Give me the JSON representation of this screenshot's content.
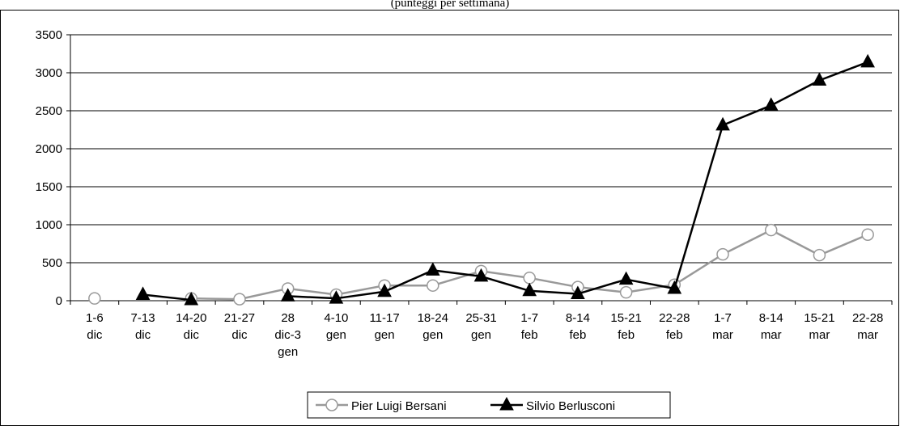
{
  "chart_data": {
    "type": "line",
    "title": "",
    "subtitle": "(punteggi per settimana)",
    "xlabel": "",
    "ylabel": "",
    "ylim": [
      0,
      3500
    ],
    "yticks": [
      "0",
      "500",
      "1000",
      "1500",
      "2000",
      "2500",
      "3000",
      "3500"
    ],
    "grid": "horizontal",
    "legend_position": "bottom",
    "categories": [
      [
        "1-6",
        "dic"
      ],
      [
        "7-13",
        "dic"
      ],
      [
        "14-20",
        "dic"
      ],
      [
        "21-27",
        "dic"
      ],
      [
        "28",
        "dic-3",
        "gen"
      ],
      [
        "4-10",
        "gen"
      ],
      [
        "11-17",
        "gen"
      ],
      [
        "18-24",
        "gen"
      ],
      [
        "25-31",
        "gen"
      ],
      [
        "1-7",
        "feb"
      ],
      [
        "8-14",
        "feb"
      ],
      [
        "15-21",
        "feb"
      ],
      [
        "22-28",
        "feb"
      ],
      [
        "1-7",
        "mar"
      ],
      [
        "8-14",
        "mar"
      ],
      [
        "15-21",
        "mar"
      ],
      [
        "22-28",
        "mar"
      ]
    ],
    "series": [
      {
        "name": "Pier Luigi Bersani",
        "color": "#999999",
        "marker": "circle-open",
        "values": [
          30,
          null,
          30,
          20,
          160,
          80,
          200,
          200,
          390,
          300,
          180,
          110,
          210,
          610,
          930,
          600,
          870
        ]
      },
      {
        "name": "Silvio Berlusconi",
        "color": "#000000",
        "marker": "triangle-filled",
        "values": [
          null,
          80,
          10,
          null,
          60,
          30,
          120,
          400,
          320,
          130,
          90,
          280,
          160,
          2310,
          2570,
          2900,
          3140
        ]
      }
    ]
  }
}
